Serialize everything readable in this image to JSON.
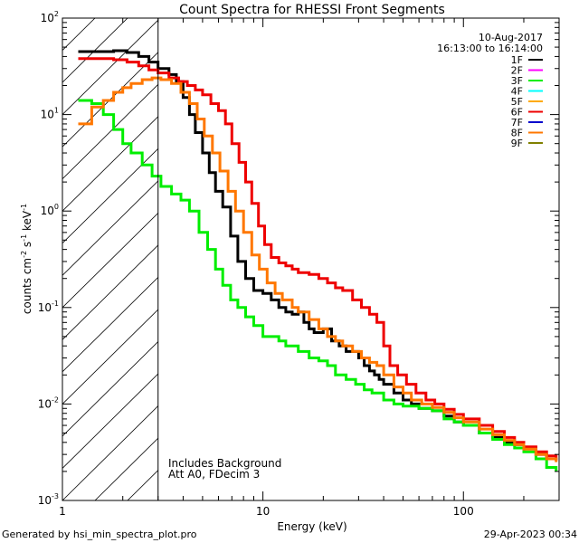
{
  "chart_data": {
    "type": "line",
    "title": "Count Spectra for RHESSI Front Segments",
    "date": "10-Aug-2017",
    "time_range": "16:13:00 to 16:14:00",
    "xlabel": "Energy (keV)",
    "ylabel_main": "counts cm",
    "ylabel_sup1": "-2",
    "ylabel_mid1": " s",
    "ylabel_sup2": "-1",
    "ylabel_mid2": " keV",
    "ylabel_sup3": "-1",
    "xscale": "log",
    "yscale": "log",
    "xlim": [
      1,
      300
    ],
    "ylim": [
      0.001,
      100
    ],
    "x_ticks": [
      {
        "value": 1,
        "label": "1"
      },
      {
        "value": 10,
        "label": "10"
      },
      {
        "value": 100,
        "label": "100"
      }
    ],
    "y_ticks": [
      {
        "value": 100,
        "base": "10",
        "exp": "2"
      },
      {
        "value": 10,
        "base": "10",
        "exp": "1"
      },
      {
        "value": 1,
        "base": "10",
        "exp": "0"
      },
      {
        "value": 0.1,
        "base": "10",
        "exp": "-1"
      },
      {
        "value": 0.01,
        "base": "10",
        "exp": "-2"
      },
      {
        "value": 0.001,
        "base": "10",
        "exp": "-3"
      }
    ],
    "shaded_region": {
      "from": 1,
      "to": 3
    },
    "annotations": [
      "Includes Background",
      "Att A0, FDecim 3"
    ],
    "legend": [
      {
        "name": "1F",
        "color": "#000000"
      },
      {
        "name": "2F",
        "color": "#ff00ff"
      },
      {
        "name": "3F",
        "color": "#00ee00"
      },
      {
        "name": "4F",
        "color": "#00ffff"
      },
      {
        "name": "5F",
        "color": "#ffaa00"
      },
      {
        "name": "6F",
        "color": "#ee0000"
      },
      {
        "name": "7F",
        "color": "#0000cc"
      },
      {
        "name": "8F",
        "color": "#ff7700"
      },
      {
        "name": "9F",
        "color": "#808000"
      }
    ],
    "series": [
      {
        "name": "1F",
        "color": "#000000",
        "points": [
          [
            1.2,
            45
          ],
          [
            1.5,
            45
          ],
          [
            1.8,
            46
          ],
          [
            2.1,
            44
          ],
          [
            2.4,
            40
          ],
          [
            2.7,
            35
          ],
          [
            3.0,
            30
          ],
          [
            3.4,
            26
          ],
          [
            3.7,
            22
          ],
          [
            4.0,
            15
          ],
          [
            4.3,
            10
          ],
          [
            4.6,
            6.5
          ],
          [
            5.0,
            4
          ],
          [
            5.4,
            2.5
          ],
          [
            5.8,
            1.6
          ],
          [
            6.3,
            1.1
          ],
          [
            6.9,
            0.55
          ],
          [
            7.5,
            0.3
          ],
          [
            8.2,
            0.2
          ],
          [
            9.0,
            0.15
          ],
          [
            10.0,
            0.14
          ],
          [
            11,
            0.12
          ],
          [
            12,
            0.1
          ],
          [
            13,
            0.09
          ],
          [
            14,
            0.085
          ],
          [
            15,
            0.09
          ],
          [
            16,
            0.07
          ],
          [
            17,
            0.06
          ],
          [
            18,
            0.055
          ],
          [
            20,
            0.06
          ],
          [
            22,
            0.045
          ],
          [
            24,
            0.04
          ],
          [
            26,
            0.035
          ],
          [
            28,
            0.035
          ],
          [
            30,
            0.03
          ],
          [
            32,
            0.025
          ],
          [
            34,
            0.022
          ],
          [
            36,
            0.02
          ],
          [
            38,
            0.018
          ],
          [
            40,
            0.016
          ],
          [
            45,
            0.013
          ],
          [
            50,
            0.011
          ],
          [
            55,
            0.01
          ],
          [
            60,
            0.009
          ],
          [
            70,
            0.0085
          ],
          [
            80,
            0.0075
          ],
          [
            90,
            0.0065
          ],
          [
            100,
            0.006
          ],
          [
            120,
            0.005
          ],
          [
            140,
            0.0045
          ],
          [
            160,
            0.004
          ],
          [
            180,
            0.0038
          ],
          [
            200,
            0.0035
          ],
          [
            230,
            0.003
          ],
          [
            260,
            0.0027
          ],
          [
            290,
            0.0026
          ]
        ]
      },
      {
        "name": "3F",
        "color": "#00ee00",
        "points": [
          [
            1.2,
            14
          ],
          [
            1.4,
            13
          ],
          [
            1.6,
            10
          ],
          [
            1.8,
            7
          ],
          [
            2.0,
            5
          ],
          [
            2.2,
            4
          ],
          [
            2.5,
            3
          ],
          [
            2.8,
            2.3
          ],
          [
            3.1,
            1.8
          ],
          [
            3.5,
            1.5
          ],
          [
            3.9,
            1.3
          ],
          [
            4.3,
            1.0
          ],
          [
            4.8,
            0.6
          ],
          [
            5.3,
            0.4
          ],
          [
            5.8,
            0.25
          ],
          [
            6.3,
            0.17
          ],
          [
            6.9,
            0.12
          ],
          [
            7.5,
            0.1
          ],
          [
            8.2,
            0.08
          ],
          [
            9.0,
            0.065
          ],
          [
            10,
            0.05
          ],
          [
            11,
            0.05
          ],
          [
            12,
            0.045
          ],
          [
            13,
            0.04
          ],
          [
            14,
            0.04
          ],
          [
            15,
            0.035
          ],
          [
            17,
            0.03
          ],
          [
            19,
            0.028
          ],
          [
            21,
            0.025
          ],
          [
            23,
            0.02
          ],
          [
            26,
            0.018
          ],
          [
            29,
            0.016
          ],
          [
            32,
            0.014
          ],
          [
            35,
            0.013
          ],
          [
            40,
            0.011
          ],
          [
            45,
            0.01
          ],
          [
            50,
            0.0095
          ],
          [
            60,
            0.009
          ],
          [
            70,
            0.0085
          ],
          [
            80,
            0.007
          ],
          [
            90,
            0.0065
          ],
          [
            100,
            0.006
          ],
          [
            120,
            0.005
          ],
          [
            140,
            0.0043
          ],
          [
            160,
            0.0038
          ],
          [
            180,
            0.0035
          ],
          [
            200,
            0.0032
          ],
          [
            230,
            0.0027
          ],
          [
            260,
            0.0022
          ],
          [
            290,
            0.002
          ]
        ]
      },
      {
        "name": "6F",
        "color": "#ee0000",
        "points": [
          [
            1.2,
            38
          ],
          [
            1.5,
            38
          ],
          [
            1.8,
            37
          ],
          [
            2.1,
            35
          ],
          [
            2.4,
            32
          ],
          [
            2.7,
            29
          ],
          [
            3.0,
            27
          ],
          [
            3.4,
            24
          ],
          [
            3.8,
            22
          ],
          [
            4.2,
            20
          ],
          [
            4.6,
            18
          ],
          [
            5.0,
            16
          ],
          [
            5.5,
            13
          ],
          [
            6.0,
            11
          ],
          [
            6.5,
            8
          ],
          [
            7.0,
            5
          ],
          [
            7.6,
            3.2
          ],
          [
            8.2,
            2
          ],
          [
            8.8,
            1.2
          ],
          [
            9.5,
            0.7
          ],
          [
            10.2,
            0.45
          ],
          [
            11,
            0.33
          ],
          [
            12,
            0.29
          ],
          [
            13,
            0.27
          ],
          [
            14,
            0.25
          ],
          [
            15,
            0.23
          ],
          [
            17,
            0.22
          ],
          [
            19,
            0.2
          ],
          [
            21,
            0.18
          ],
          [
            23,
            0.16
          ],
          [
            25,
            0.15
          ],
          [
            28,
            0.12
          ],
          [
            31,
            0.1
          ],
          [
            34,
            0.085
          ],
          [
            37,
            0.07
          ],
          [
            40,
            0.04
          ],
          [
            43,
            0.025
          ],
          [
            47,
            0.02
          ],
          [
            52,
            0.016
          ],
          [
            58,
            0.013
          ],
          [
            65,
            0.011
          ],
          [
            72,
            0.01
          ],
          [
            80,
            0.0088
          ],
          [
            90,
            0.0078
          ],
          [
            100,
            0.007
          ],
          [
            120,
            0.006
          ],
          [
            140,
            0.0052
          ],
          [
            160,
            0.0045
          ],
          [
            180,
            0.004
          ],
          [
            200,
            0.0036
          ],
          [
            230,
            0.0032
          ],
          [
            260,
            0.0029
          ],
          [
            290,
            0.0026
          ]
        ]
      },
      {
        "name": "8F",
        "color": "#ff7700",
        "points": [
          [
            1.2,
            8
          ],
          [
            1.4,
            12
          ],
          [
            1.6,
            14
          ],
          [
            1.8,
            17
          ],
          [
            2.0,
            19
          ],
          [
            2.2,
            21
          ],
          [
            2.5,
            23
          ],
          [
            2.8,
            24
          ],
          [
            3.1,
            23
          ],
          [
            3.5,
            21
          ],
          [
            3.9,
            17
          ],
          [
            4.3,
            13
          ],
          [
            4.7,
            9
          ],
          [
            5.1,
            6
          ],
          [
            5.6,
            4
          ],
          [
            6.1,
            2.6
          ],
          [
            6.7,
            1.6
          ],
          [
            7.3,
            1.0
          ],
          [
            8.0,
            0.6
          ],
          [
            8.8,
            0.35
          ],
          [
            9.6,
            0.25
          ],
          [
            10.5,
            0.18
          ],
          [
            11.5,
            0.14
          ],
          [
            12.5,
            0.12
          ],
          [
            14,
            0.1
          ],
          [
            15,
            0.09
          ],
          [
            17,
            0.075
          ],
          [
            19,
            0.06
          ],
          [
            21,
            0.05
          ],
          [
            23,
            0.045
          ],
          [
            25,
            0.04
          ],
          [
            28,
            0.035
          ],
          [
            31,
            0.03
          ],
          [
            34,
            0.027
          ],
          [
            37,
            0.025
          ],
          [
            40,
            0.02
          ],
          [
            45,
            0.015
          ],
          [
            50,
            0.013
          ],
          [
            55,
            0.011
          ],
          [
            62,
            0.01
          ],
          [
            70,
            0.0092
          ],
          [
            80,
            0.0082
          ],
          [
            90,
            0.0072
          ],
          [
            100,
            0.0065
          ],
          [
            120,
            0.0055
          ],
          [
            140,
            0.0048
          ],
          [
            160,
            0.0042
          ],
          [
            180,
            0.0038
          ],
          [
            200,
            0.0034
          ],
          [
            230,
            0.003
          ],
          [
            260,
            0.0027
          ],
          [
            290,
            0.0025
          ]
        ]
      }
    ]
  },
  "footer": {
    "left": "Generated by hsi_min_spectra_plot.pro",
    "right": "29-Apr-2023 00:34"
  }
}
